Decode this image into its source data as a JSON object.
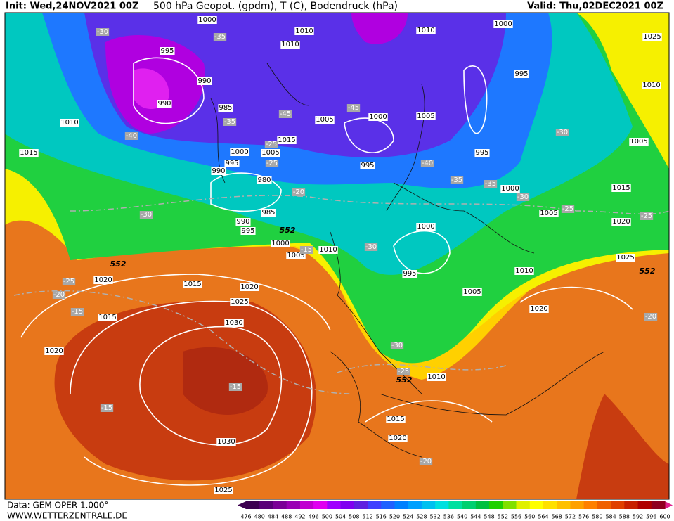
{
  "header": {
    "init": "Init: Wed,24NOV2021 00Z",
    "title": "500 hPa Geopot. (gpdm), T (C), Bodendruck (hPa)",
    "valid": "Valid: Thu,02DEC2021 00Z"
  },
  "footer": {
    "data": "Data: GEM OPER 1.000°",
    "site": "WWW.WETTERZENTRALE.DE"
  },
  "legend": {
    "levels": [
      476,
      480,
      484,
      488,
      492,
      496,
      500,
      504,
      508,
      512,
      516,
      520,
      524,
      528,
      532,
      536,
      540,
      544,
      548,
      552,
      556,
      560,
      564,
      568,
      572,
      576,
      580,
      584,
      588,
      592,
      596,
      600
    ],
    "colors": [
      "#3c0050",
      "#5a0078",
      "#7a0096",
      "#9a00b4",
      "#c000d0",
      "#e000f0",
      "#a000ff",
      "#8000f0",
      "#6020e0",
      "#4040ff",
      "#2060ff",
      "#0080ff",
      "#00a0ff",
      "#00c0f0",
      "#00e0e0",
      "#00e0a0",
      "#00d070",
      "#00c040",
      "#20d000",
      "#80e000",
      "#e0f000",
      "#ffff00",
      "#ffe000",
      "#ffc000",
      "#ffa000",
      "#ff8000",
      "#f06000",
      "#e04000",
      "#c82000",
      "#b00000",
      "#900020"
    ]
  },
  "map": {
    "pressure_labels": [
      1000,
      1010,
      1010,
      1010,
      1000,
      1025,
      995,
      995,
      1010,
      990,
      990,
      985,
      1005,
      1000,
      1005,
      1010,
      1015,
      1005,
      1015,
      1000,
      1005,
      995,
      995,
      995,
      990,
      1000,
      1015,
      980,
      985,
      990,
      995,
      1005,
      1020,
      1000,
      1000,
      1010,
      1005,
      1025,
      995,
      1010,
      1020,
      1015,
      1020,
      1005,
      1025,
      1020,
      1015,
      1030,
      1020,
      1010,
      1015,
      1020,
      1030,
      1025
    ],
    "temperature_labels": [
      -30,
      -35,
      -40,
      -35,
      -45,
      -45,
      -25,
      -25,
      -20,
      -30,
      -40,
      -35,
      -35,
      -30,
      -30,
      -25,
      -25,
      -30,
      -25,
      -20,
      -15,
      -15,
      -30,
      -25,
      -15,
      -15,
      -20,
      -20
    ],
    "geopotential_labels": [
      552,
      552,
      552,
      552
    ]
  }
}
